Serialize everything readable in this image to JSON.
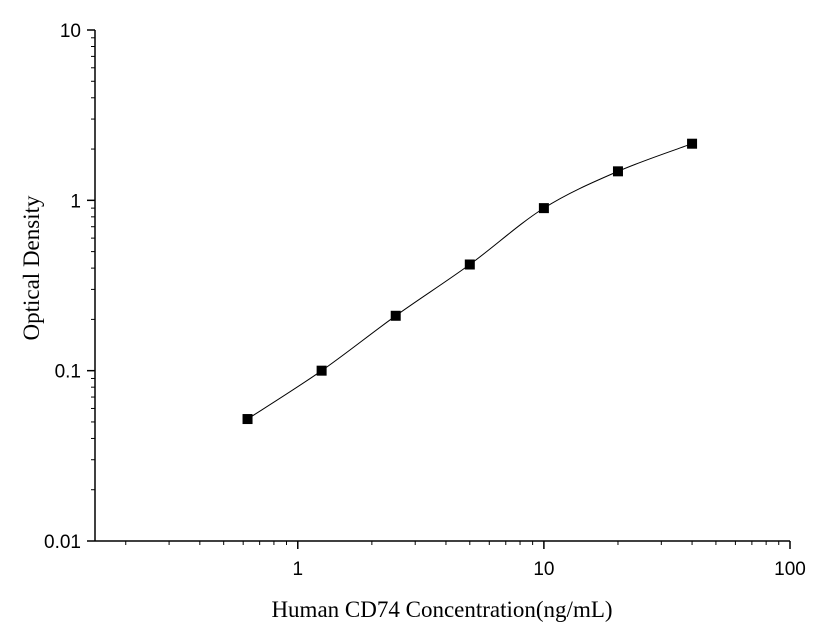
{
  "chart_data": {
    "type": "scatter",
    "xlabel": "Human CD74 Concentration(ng/mL)",
    "ylabel": "Optical Density",
    "x_scale": "log",
    "y_scale": "log",
    "xlim": [
      0.15,
      100
    ],
    "ylim": [
      0.01,
      10
    ],
    "x_ticks": [
      {
        "value": 1,
        "label": "1"
      },
      {
        "value": 10,
        "label": "10"
      },
      {
        "value": 100,
        "label": "100"
      }
    ],
    "y_ticks": [
      {
        "value": 0.01,
        "label": "0.01"
      },
      {
        "value": 0.1,
        "label": "0.1"
      },
      {
        "value": 1,
        "label": "1"
      },
      {
        "value": 10,
        "label": "10"
      }
    ],
    "grid": false,
    "series": [
      {
        "marker": "square",
        "color": "#000000",
        "line": "fitted curve",
        "points": [
          {
            "x": 0.625,
            "y": 0.052
          },
          {
            "x": 1.25,
            "y": 0.1
          },
          {
            "x": 2.5,
            "y": 0.21
          },
          {
            "x": 5,
            "y": 0.42
          },
          {
            "x": 10,
            "y": 0.9
          },
          {
            "x": 20,
            "y": 1.48
          },
          {
            "x": 40,
            "y": 2.15
          }
        ]
      }
    ]
  }
}
